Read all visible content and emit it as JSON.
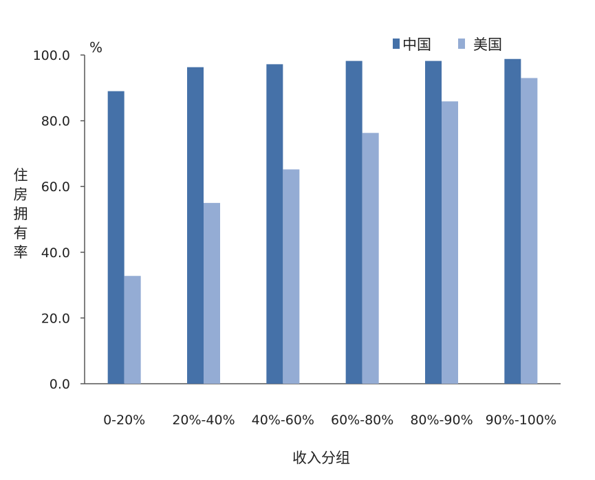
{
  "chart_data": {
    "type": "bar",
    "title": "",
    "unit_label": "%",
    "xlabel": "收入分组",
    "ylabel": "住房拥有率",
    "ylim": [
      0,
      100
    ],
    "yticks": [
      "0.0",
      "20.0",
      "40.0",
      "60.0",
      "80.0",
      "100.0"
    ],
    "ytick_values": [
      0,
      20,
      40,
      60,
      80,
      100
    ],
    "categories": [
      "0-20%",
      "20%-40%",
      "40%-60%",
      "60%-80%",
      "80%-90%",
      "90%-100%"
    ],
    "series": [
      {
        "name": "中国",
        "color": "#4571A8",
        "values": [
          89.0,
          96.3,
          97.2,
          98.2,
          98.2,
          98.8
        ]
      },
      {
        "name": "美国",
        "color": "#94ACD4",
        "values": [
          32.8,
          55.0,
          65.2,
          76.3,
          85.9,
          93.0
        ]
      }
    ],
    "legend_position": "top-right",
    "grid": false
  }
}
